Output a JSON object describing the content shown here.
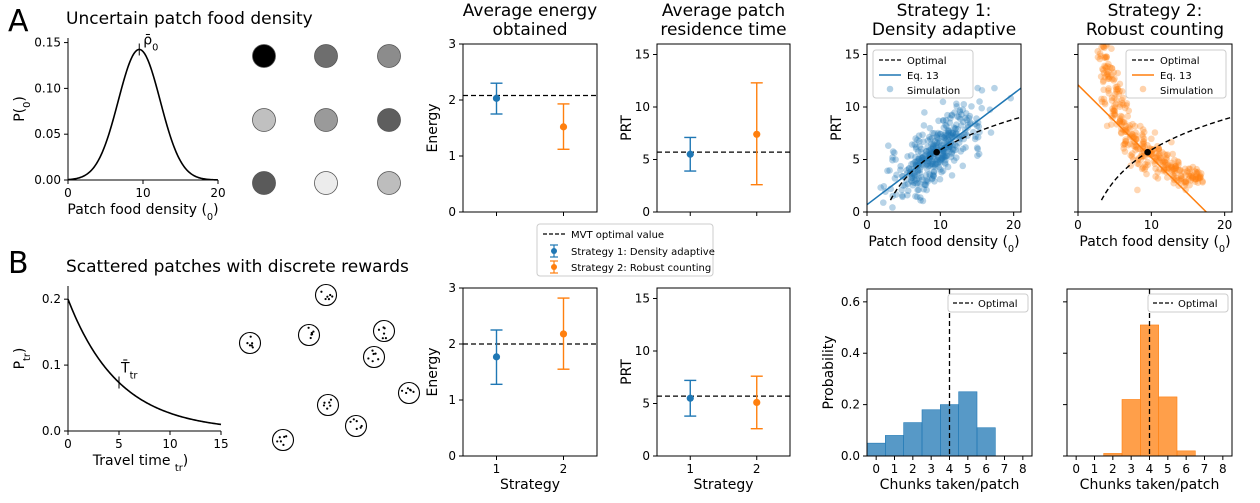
{
  "panel_a": {
    "letter": "A",
    "title": "Uncertain patch food density",
    "density_plot": {
      "type": "line",
      "xlabel": "Patch food density (ρ0)",
      "ylabel": "P(ρ0)",
      "peak_label": "ρ̄0",
      "xlim": [
        0,
        20
      ],
      "ylim": [
        0,
        0.155
      ],
      "xticks": [
        "0",
        "10",
        "20"
      ],
      "yticks": [
        "0.00",
        "0.05",
        "0.10",
        "0.15"
      ],
      "mean": 9.5,
      "sd": 2.8
    },
    "patch_grid_shades": [
      "#000000",
      "#6e6e6e",
      "#8c8c8c",
      "#c0c0c0",
      "#9a9a9a",
      "#5e5e5e",
      "#5a5a5a",
      "#ececec",
      "#bdbdbd"
    ]
  },
  "panel_b": {
    "letter": "B",
    "title": "Scattered patches with discrete rewards",
    "travel_plot": {
      "type": "line",
      "xlabel": "Travel time (Ttr)",
      "ylabel": "P(Ttr)",
      "mean_label": "T̄tr",
      "xlim": [
        0,
        15
      ],
      "ylim": [
        0,
        0.22
      ],
      "xticks": [
        "0",
        "5",
        "10",
        "15"
      ],
      "yticks": [
        "0.0",
        "0.1",
        "0.2"
      ],
      "rate": 0.2,
      "mean": 5
    }
  },
  "colors": {
    "strategy1": "#1f77b4",
    "strategy2": "#ff7f0e",
    "optimal": "#000000"
  },
  "legend_mid": {
    "optimal": "MVT optimal value",
    "s1": "Strategy 1: Density adaptive",
    "s2": "Strategy 2: Robust counting"
  },
  "chart_data": [
    {
      "id": "energy_a",
      "type": "scatter",
      "title": "Average energy\nobtained",
      "ylabel": "Energy",
      "ylim": [
        0,
        3
      ],
      "yticks": [
        "0",
        "1",
        "2",
        "3"
      ],
      "optimal": 2.08,
      "points": [
        {
          "x": 1,
          "y": 2.03,
          "lo": 1.75,
          "hi": 2.3,
          "series": "strategy1"
        },
        {
          "x": 2,
          "y": 1.52,
          "lo": 1.12,
          "hi": 1.93,
          "series": "strategy2"
        }
      ]
    },
    {
      "id": "prt_a",
      "type": "scatter",
      "title": "Average patch\nresidence time",
      "ylabel": "PRT",
      "ylim": [
        0,
        16
      ],
      "yticks": [
        "0",
        "5",
        "10",
        "15"
      ],
      "optimal": 5.7,
      "points": [
        {
          "x": 1,
          "y": 5.5,
          "lo": 3.9,
          "hi": 7.1,
          "series": "strategy1"
        },
        {
          "x": 2,
          "y": 7.4,
          "lo": 2.6,
          "hi": 12.3,
          "series": "strategy2"
        }
      ]
    },
    {
      "id": "energy_b",
      "type": "scatter",
      "xlabel": "Strategy",
      "xticks": [
        "1",
        "2"
      ],
      "ylabel": "Energy",
      "ylim": [
        0,
        3
      ],
      "yticks": [
        "0",
        "1",
        "2",
        "3"
      ],
      "optimal": 2.0,
      "points": [
        {
          "x": 1,
          "y": 1.77,
          "lo": 1.28,
          "hi": 2.25,
          "series": "strategy1"
        },
        {
          "x": 2,
          "y": 2.18,
          "lo": 1.55,
          "hi": 2.82,
          "series": "strategy2"
        }
      ]
    },
    {
      "id": "prt_b",
      "type": "scatter",
      "xlabel": "Strategy",
      "xticks": [
        "1",
        "2"
      ],
      "ylabel": "PRT",
      "ylim": [
        0,
        16
      ],
      "yticks": [
        "0",
        "5",
        "10",
        "15"
      ],
      "optimal": 5.7,
      "points": [
        {
          "x": 1,
          "y": 5.5,
          "lo": 3.8,
          "hi": 7.2,
          "series": "strategy1"
        },
        {
          "x": 2,
          "y": 5.1,
          "lo": 2.6,
          "hi": 7.6,
          "series": "strategy2"
        }
      ]
    },
    {
      "id": "s1_scatter",
      "type": "scatter",
      "title": "Strategy 1:\nDensity adaptive",
      "xlabel": "Patch food density (ρ0)",
      "ylabel": "PRT",
      "xlim": [
        0,
        21
      ],
      "ylim": [
        0,
        16
      ],
      "xticks": [
        "0",
        "10",
        "20"
      ],
      "yticks": [
        "0",
        "5",
        "10",
        "15"
      ],
      "legend": [
        "Optimal",
        "Eq. 13",
        "Simulation"
      ],
      "eq_line": {
        "x0": 0,
        "y0": 0.7,
        "x1": 21,
        "y1": 11.8
      },
      "optimal_curve": {
        "a": 5.7,
        "b": 4.2,
        "x0": 9.5,
        "xstart": 3.2
      },
      "mean_point": [
        9.5,
        5.7
      ],
      "cloud": {
        "n": 380,
        "x_mean": 9.5,
        "x_sd": 3.2,
        "slope": 0.53,
        "intercept": 0.7,
        "noise": 1.4,
        "seed": 7
      }
    },
    {
      "id": "s2_scatter",
      "type": "scatter",
      "title": "Strategy 2:\nRobust counting",
      "xlabel": "Patch food density (ρ0)",
      "xlim": [
        0,
        21
      ],
      "ylim": [
        0,
        16
      ],
      "xticks": [
        "0",
        "10",
        "20"
      ],
      "yticks": [
        "0",
        "5",
        "10",
        "15"
      ],
      "legend": [
        "Optimal",
        "Eq. 13",
        "Simulation"
      ],
      "eq_line": {
        "x0": 0,
        "y0": 12.1,
        "x1": 17.5,
        "y1": 0
      },
      "optimal_curve": {
        "a": 5.7,
        "b": 4.2,
        "x0": 9.5,
        "xstart": 3.2
      },
      "mean_point": [
        9.5,
        5.7
      ],
      "cloud": {
        "n": 380,
        "k": 54,
        "x_min": 2.5,
        "x_max": 17,
        "noise_frac": 0.18,
        "seed": 11
      }
    },
    {
      "id": "hist_s1",
      "type": "bar",
      "xlabel": "Chunks taken/patch",
      "ylabel": "Probability",
      "xlim": [
        -0.5,
        8.5
      ],
      "ylim": [
        0,
        0.65
      ],
      "xticks": [
        "0",
        "1",
        "2",
        "3",
        "4",
        "5",
        "6",
        "7",
        "8"
      ],
      "yticks": [
        "0.0",
        "0.2",
        "0.4",
        "0.6"
      ],
      "categories": [
        0,
        1,
        2,
        3,
        4,
        5,
        6
      ],
      "values": [
        0.05,
        0.08,
        0.13,
        0.18,
        0.2,
        0.25,
        0.11
      ],
      "optimal": 4.0,
      "legend": [
        "Optimal"
      ]
    },
    {
      "id": "hist_s2",
      "type": "bar",
      "xlabel": "Chunks taken/patch",
      "xlim": [
        -0.5,
        8.5
      ],
      "ylim": [
        0,
        0.65
      ],
      "xticks": [
        "0",
        "1",
        "2",
        "3",
        "4",
        "5",
        "6",
        "7",
        "8"
      ],
      "categories": [
        2,
        3,
        4,
        5,
        6
      ],
      "values": [
        0.01,
        0.22,
        0.51,
        0.23,
        0.02
      ],
      "optimal": 4.0,
      "legend": [
        "Optimal"
      ]
    }
  ]
}
